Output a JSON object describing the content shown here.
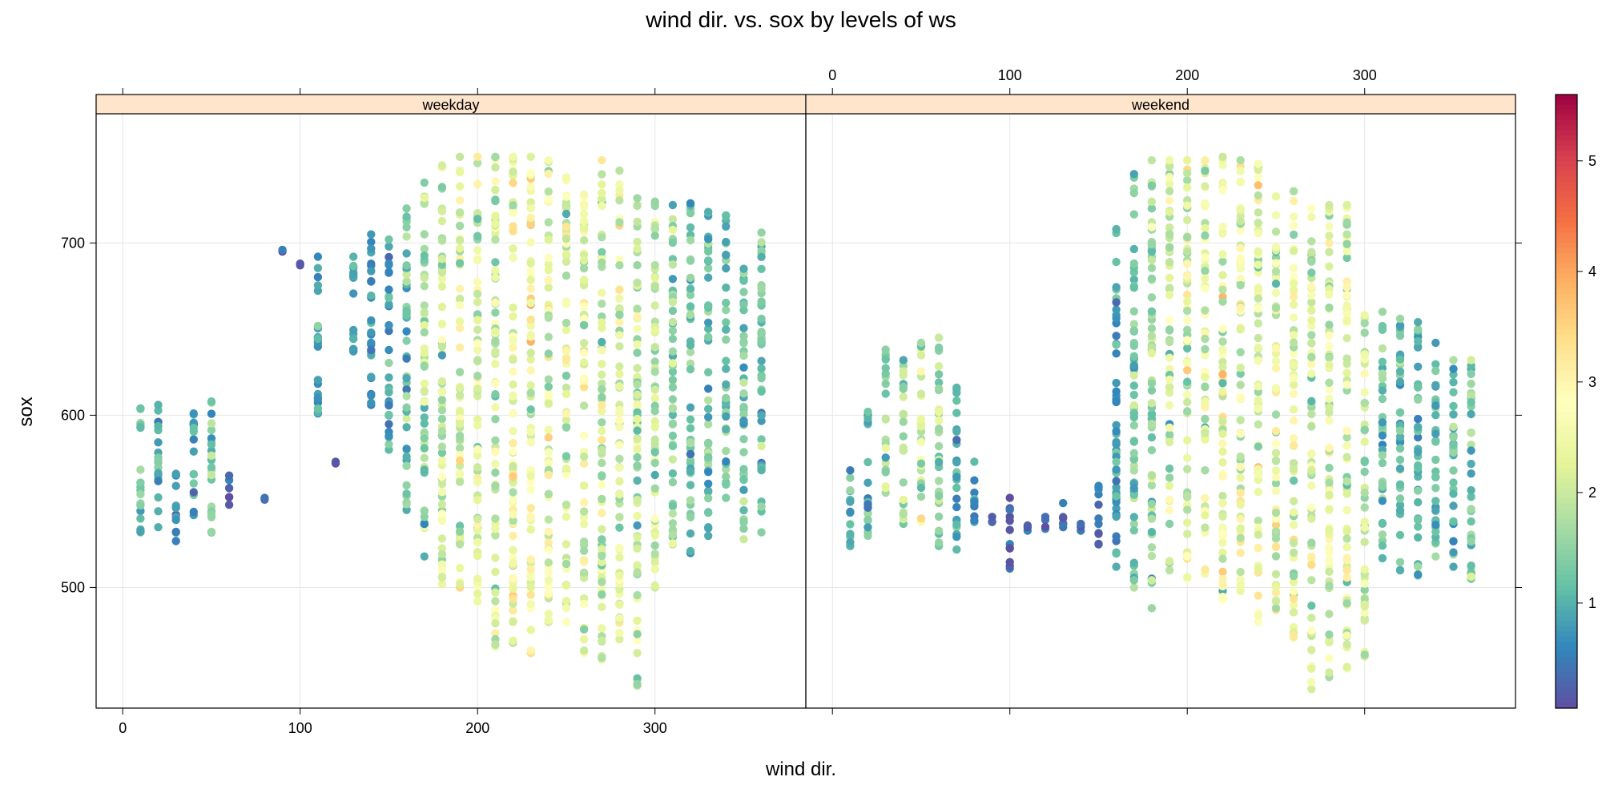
{
  "chart_data": {
    "type": "scatter",
    "title": "wind dir. vs. sox by levels of ws",
    "xlabel": "wind dir.",
    "ylabel": "sox",
    "xlim": [
      -15,
      385
    ],
    "ylim": [
      430,
      775
    ],
    "x_ticks": [
      0,
      100,
      200,
      300
    ],
    "y_ticks": [
      500,
      600,
      700
    ],
    "grid": true,
    "color_scale": {
      "variable": "ws",
      "range": [
        0.05,
        5.6
      ],
      "ticks": [
        1,
        2,
        3,
        4,
        5
      ],
      "palette": [
        "#5E4FA2",
        "#3288BD",
        "#66C2A5",
        "#ABDDA4",
        "#E6F598",
        "#FFFFBF",
        "#FEE08B",
        "#FDAE61",
        "#F46D43",
        "#D53E4F",
        "#9E0142"
      ]
    },
    "strip_color": "#FFE5CC",
    "panels": [
      {
        "name": "weekday",
        "columns": [
          {
            "x": 10,
            "sox": [
              532,
              604
            ],
            "ws": 1.2
          },
          {
            "x": 20,
            "sox": [
              535,
              606
            ],
            "ws": 1.0
          },
          {
            "x": 30,
            "sox": [
              527,
              566
            ],
            "ws": 0.8
          },
          {
            "x": 40,
            "sox": [
              542,
              601
            ],
            "ws": 0.8
          },
          {
            "x": 50,
            "sox": [
              532,
              608
            ],
            "ws": 1.3
          },
          {
            "x": 60,
            "sox": [
              548,
              565
            ],
            "ws": 0.4
          },
          {
            "x": 80,
            "sox": [
              551,
              552
            ],
            "ws": 0.3
          },
          {
            "x": 90,
            "sox": [
              695,
              696
            ],
            "ws": 0.3
          },
          {
            "x": 100,
            "sox": [
              687,
              688
            ],
            "ws": 0.3
          },
          {
            "x": 110,
            "sox": [
              601,
              692
            ],
            "ws": 0.8
          },
          {
            "x": 120,
            "sox": [
              572,
              573
            ],
            "ws": 0.3
          },
          {
            "x": 130,
            "sox": [
              637,
              692
            ],
            "ws": 0.8
          },
          {
            "x": 140,
            "sox": [
              606,
              705
            ],
            "ws": 0.6
          },
          {
            "x": 150,
            "sox": [
              580,
              702
            ],
            "ws": 0.9
          },
          {
            "x": 160,
            "sox": [
              545,
              720
            ],
            "ws": 1.3
          },
          {
            "x": 170,
            "sox": [
              518,
              735
            ],
            "ws": 1.7
          },
          {
            "x": 180,
            "sox": [
              502,
              745
            ],
            "ws": 2.0
          },
          {
            "x": 190,
            "sox": [
              500,
              750
            ],
            "ws": 2.2
          },
          {
            "x": 200,
            "sox": [
              492,
              750
            ],
            "ws": 2.2
          },
          {
            "x": 210,
            "sox": [
              466,
              750
            ],
            "ws": 2.1
          },
          {
            "x": 220,
            "sox": [
              468,
              750
            ],
            "ws": 2.4
          },
          {
            "x": 230,
            "sox": [
              462,
              750
            ],
            "ws": 2.5
          },
          {
            "x": 240,
            "sox": [
              480,
              748
            ],
            "ws": 2.4
          },
          {
            "x": 250,
            "sox": [
              480,
              738
            ],
            "ws": 2.3
          },
          {
            "x": 260,
            "sox": [
              462,
              728
            ],
            "ws": 2.3
          },
          {
            "x": 270,
            "sox": [
              458,
              748
            ],
            "ws": 2.1
          },
          {
            "x": 280,
            "sox": [
              470,
              742
            ],
            "ws": 2.2
          },
          {
            "x": 290,
            "sox": [
              443,
              726
            ],
            "ws": 2.0
          },
          {
            "x": 300,
            "sox": [
              500,
              724
            ],
            "ws": 1.9
          },
          {
            "x": 310,
            "sox": [
              525,
              722
            ],
            "ws": 1.5
          },
          {
            "x": 320,
            "sox": [
              520,
              723
            ],
            "ws": 1.3
          },
          {
            "x": 330,
            "sox": [
              530,
              718
            ],
            "ws": 1.2
          },
          {
            "x": 340,
            "sox": [
              552,
              716
            ],
            "ws": 1.3
          },
          {
            "x": 350,
            "sox": [
              528,
              685
            ],
            "ws": 1.4
          },
          {
            "x": 360,
            "sox": [
              532,
              706
            ],
            "ws": 1.2
          }
        ]
      },
      {
        "name": "weekend",
        "columns": [
          {
            "x": 10,
            "sox": [
              524,
              568
            ],
            "ws": 1.0
          },
          {
            "x": 20,
            "sox": [
              530,
              602
            ],
            "ws": 1.1
          },
          {
            "x": 30,
            "sox": [
              555,
              638
            ],
            "ws": 1.8
          },
          {
            "x": 40,
            "sox": [
              537,
              632
            ],
            "ws": 1.7
          },
          {
            "x": 50,
            "sox": [
              538,
              642
            ],
            "ws": 2.3
          },
          {
            "x": 60,
            "sox": [
              524,
              645
            ],
            "ws": 1.5
          },
          {
            "x": 70,
            "sox": [
              522,
              616
            ],
            "ws": 1.0
          },
          {
            "x": 80,
            "sox": [
              538,
              573
            ],
            "ws": 1.0
          },
          {
            "x": 90,
            "sox": [
              538,
              541
            ],
            "ws": 0.3
          },
          {
            "x": 100,
            "sox": [
              511,
              552
            ],
            "ws": 0.3
          },
          {
            "x": 110,
            "sox": [
              533,
              536
            ],
            "ws": 0.3
          },
          {
            "x": 120,
            "sox": [
              534,
              541
            ],
            "ws": 0.3
          },
          {
            "x": 130,
            "sox": [
              535,
              549
            ],
            "ws": 0.3
          },
          {
            "x": 140,
            "sox": [
              533,
              537
            ],
            "ws": 0.3
          },
          {
            "x": 150,
            "sox": [
              525,
              559
            ],
            "ws": 0.4
          },
          {
            "x": 160,
            "sox": [
              512,
              708
            ],
            "ws": 0.9
          },
          {
            "x": 170,
            "sox": [
              500,
              740
            ],
            "ws": 1.3
          },
          {
            "x": 180,
            "sox": [
              488,
              748
            ],
            "ws": 1.6
          },
          {
            "x": 190,
            "sox": [
              510,
              748
            ],
            "ws": 2.0
          },
          {
            "x": 200,
            "sox": [
              505,
              748
            ],
            "ws": 2.3
          },
          {
            "x": 210,
            "sox": [
              508,
              748
            ],
            "ws": 2.3
          },
          {
            "x": 220,
            "sox": [
              493,
              750
            ],
            "ws": 2.5
          },
          {
            "x": 230,
            "sox": [
              498,
              748
            ],
            "ws": 2.5
          },
          {
            "x": 240,
            "sox": [
              480,
              746
            ],
            "ws": 2.4
          },
          {
            "x": 250,
            "sox": [
              487,
              727
            ],
            "ws": 2.4
          },
          {
            "x": 260,
            "sox": [
              471,
              730
            ],
            "ws": 2.3
          },
          {
            "x": 270,
            "sox": [
              441,
              720
            ],
            "ws": 2.2
          },
          {
            "x": 280,
            "sox": [
              448,
              722
            ],
            "ws": 2.4
          },
          {
            "x": 290,
            "sox": [
              453,
              722
            ],
            "ws": 2.3
          },
          {
            "x": 300,
            "sox": [
              460,
              658
            ],
            "ws": 1.9
          },
          {
            "x": 310,
            "sox": [
              517,
              660
            ],
            "ws": 1.4
          },
          {
            "x": 320,
            "sox": [
              510,
              656
            ],
            "ws": 1.2
          },
          {
            "x": 330,
            "sox": [
              507,
              654
            ],
            "ws": 1.1
          },
          {
            "x": 340,
            "sox": [
              518,
              642
            ],
            "ws": 1.1
          },
          {
            "x": 350,
            "sox": [
              512,
              632
            ],
            "ws": 1.2
          },
          {
            "x": 360,
            "sox": [
              505,
              632
            ],
            "ws": 1.4
          }
        ]
      }
    ]
  }
}
